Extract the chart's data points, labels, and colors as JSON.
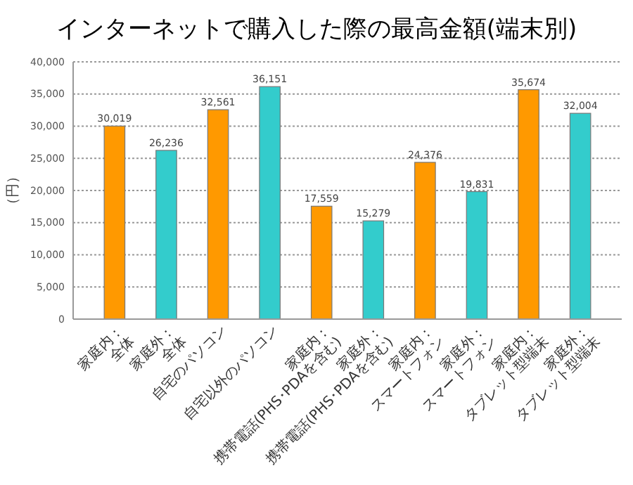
{
  "chart_data": {
    "type": "bar",
    "title": "インターネットで購入した際の最高金額(端末別)",
    "ylabel": "（円）",
    "categories": [
      "家庭内：全体",
      "家庭外：全体",
      "自宅のパソコン",
      "自宅以外のパソコン",
      "家庭内：携帯電話(PHS･PDAを含む)",
      "家庭外：携帯電話(PHS･PDAを含む)",
      "家庭内：スマートフォン",
      "家庭外：スマートフォン",
      "家庭内：タブレット型端末",
      "家庭外：タブレット型端末"
    ],
    "values": [
      30019,
      26236,
      32561,
      36151,
      17559,
      15279,
      24376,
      19831,
      35674,
      32004
    ],
    "colors": [
      "#ff9900",
      "#33cccc",
      "#ff9900",
      "#33cccc",
      "#ff9900",
      "#33cccc",
      "#ff9900",
      "#33cccc",
      "#ff9900",
      "#33cccc"
    ],
    "value_labels": [
      "30,019",
      "26,236",
      "32,561",
      "36,151",
      "17,559",
      "15,279",
      "24,376",
      "19,831",
      "35,674",
      "32,004"
    ],
    "ylim": [
      0,
      40000
    ],
    "yticks": [
      {
        "value": 0,
        "label": "0"
      },
      {
        "value": 5000,
        "label": "5,000"
      },
      {
        "value": 10000,
        "label": "10,000"
      },
      {
        "value": 15000,
        "label": "15,000"
      },
      {
        "value": 20000,
        "label": "20,000"
      },
      {
        "value": 25000,
        "label": "25,000"
      },
      {
        "value": 30000,
        "label": "30,000"
      },
      {
        "value": 35000,
        "label": "35,000"
      },
      {
        "value": 40000,
        "label": "40,000"
      }
    ],
    "grid": "y"
  }
}
